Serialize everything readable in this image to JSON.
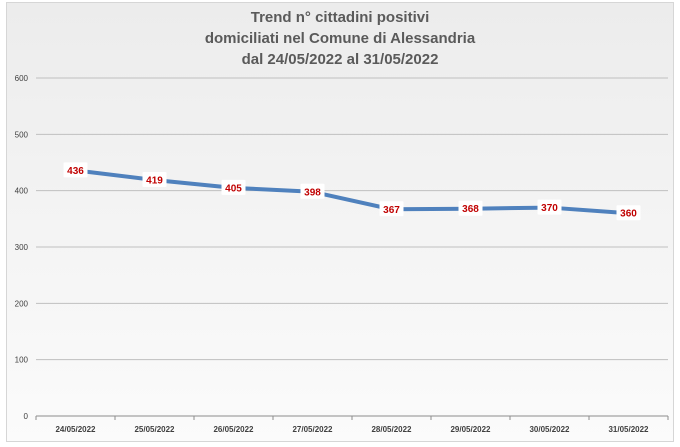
{
  "chart_data": {
    "type": "line",
    "title_lines": [
      "Trend n° cittadini positivi",
      "domiciliati nel Comune di Alessandria",
      "dal 24/05/2022 al 31/05/2022"
    ],
    "categories": [
      "24/05/2022",
      "25/05/2022",
      "26/05/2022",
      "27/05/2022",
      "28/05/2022",
      "29/05/2022",
      "30/05/2022",
      "31/05/2022"
    ],
    "values": [
      436,
      419,
      405,
      398,
      367,
      368,
      370,
      360
    ],
    "data_labels": [
      "436",
      "419",
      "405",
      "398",
      "367",
      "368",
      "370",
      "360"
    ],
    "ylim": [
      0,
      600
    ],
    "yticks": [
      "0",
      "100",
      "200",
      "300",
      "400",
      "500",
      "600"
    ],
    "xlabel": "",
    "ylabel": "",
    "grid": true,
    "legend": "none",
    "colors": {
      "line": "#4f81bd",
      "label_text": "#c00000",
      "label_box": "#ffffff",
      "grid": "#bfbfbf",
      "title": "#5a5a5a"
    }
  }
}
